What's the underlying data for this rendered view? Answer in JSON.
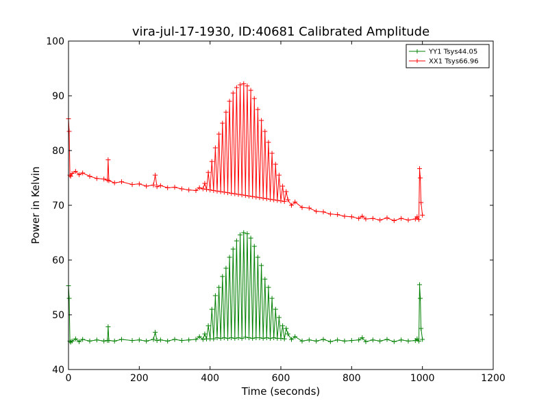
{
  "chart_data": {
    "type": "line",
    "title": "vira-jul-17-1930, ID:40681 Calibrated Amplitude",
    "xlabel": "Time (seconds)",
    "ylabel": "Power in Kelvin",
    "xlim": [
      0,
      1200
    ],
    "ylim": [
      40,
      100
    ],
    "x_ticks": [
      "0",
      "200",
      "400",
      "600",
      "800",
      "1000",
      "1200"
    ],
    "y_ticks": [
      "40",
      "50",
      "60",
      "70",
      "80",
      "90",
      "100"
    ],
    "grid": false,
    "legend_position": "top-right",
    "series": [
      {
        "name": "YY1 Tsys44.05",
        "color": "#008000",
        "marker": "+",
        "x": [
          0,
          2,
          4,
          6,
          10,
          20,
          30,
          40,
          60,
          80,
          100,
          110,
          112,
          114,
          130,
          150,
          180,
          200,
          220,
          240,
          245,
          250,
          260,
          280,
          300,
          320,
          340,
          360,
          370,
          380,
          385,
          390,
          395,
          400,
          405,
          410,
          415,
          420,
          425,
          430,
          435,
          440,
          445,
          450,
          455,
          460,
          465,
          470,
          475,
          480,
          485,
          490,
          495,
          500,
          505,
          510,
          515,
          520,
          525,
          530,
          535,
          540,
          545,
          550,
          555,
          560,
          565,
          570,
          575,
          580,
          585,
          590,
          595,
          600,
          605,
          610,
          615,
          620,
          630,
          640,
          660,
          680,
          700,
          720,
          740,
          760,
          780,
          800,
          820,
          830,
          840,
          860,
          880,
          900,
          920,
          940,
          960,
          980,
          985,
          990,
          992,
          994,
          996,
          1000
        ],
        "y": [
          55.3,
          53.0,
          45.2,
          45.0,
          45.2,
          45.6,
          45.1,
          45.5,
          45.2,
          45.4,
          45.2,
          45.3,
          47.8,
          45.3,
          45.2,
          45.5,
          45.3,
          45.4,
          45.2,
          45.5,
          46.8,
          45.3,
          45.4,
          45.2,
          45.5,
          45.3,
          45.4,
          45.5,
          46.0,
          45.5,
          46.5,
          45.6,
          48.0,
          45.6,
          51.0,
          45.6,
          53.5,
          45.8,
          55.0,
          45.7,
          57.0,
          45.8,
          58.5,
          45.7,
          60.5,
          45.8,
          62.0,
          45.7,
          63.5,
          45.8,
          64.6,
          45.7,
          65.0,
          45.9,
          64.8,
          45.8,
          64.0,
          45.7,
          62.5,
          45.8,
          60.5,
          45.8,
          59.0,
          45.7,
          56.5,
          45.8,
          55.0,
          45.7,
          53.0,
          45.8,
          51.0,
          45.7,
          49.5,
          45.7,
          48.0,
          45.6,
          47.5,
          46.5,
          45.5,
          46.0,
          45.2,
          45.4,
          45.2,
          45.5,
          45.1,
          45.4,
          45.2,
          45.3,
          45.4,
          45.8,
          45.1,
          45.4,
          45.2,
          45.5,
          45.1,
          45.4,
          45.2,
          45.3,
          45.6,
          45.2,
          55.5,
          53.0,
          47.5,
          45.5
        ]
      },
      {
        "name": "XX1 Tsys66.96",
        "color": "#ff0000",
        "marker": "+",
        "x": [
          0,
          2,
          4,
          6,
          10,
          20,
          30,
          40,
          60,
          80,
          100,
          110,
          112,
          114,
          130,
          150,
          180,
          200,
          220,
          240,
          245,
          250,
          260,
          280,
          300,
          320,
          340,
          360,
          370,
          380,
          385,
          390,
          395,
          400,
          405,
          410,
          415,
          420,
          425,
          430,
          435,
          440,
          445,
          450,
          455,
          460,
          465,
          470,
          475,
          480,
          485,
          490,
          495,
          500,
          505,
          510,
          515,
          520,
          525,
          530,
          535,
          540,
          545,
          550,
          555,
          560,
          565,
          570,
          575,
          580,
          585,
          590,
          595,
          600,
          605,
          610,
          615,
          620,
          630,
          640,
          660,
          680,
          700,
          720,
          740,
          760,
          780,
          800,
          820,
          830,
          840,
          860,
          880,
          900,
          920,
          940,
          960,
          980,
          985,
          990,
          992,
          994,
          996,
          1000
        ],
        "y": [
          85.8,
          83.5,
          75.5,
          75.3,
          75.8,
          76.2,
          75.6,
          75.9,
          75.3,
          74.9,
          74.8,
          74.6,
          78.3,
          74.5,
          74.1,
          74.3,
          73.8,
          73.9,
          73.5,
          73.7,
          75.5,
          73.4,
          73.6,
          73.2,
          73.3,
          73.0,
          72.8,
          72.7,
          73.2,
          73.0,
          74.0,
          72.9,
          76.0,
          72.8,
          78.0,
          72.7,
          80.5,
          72.6,
          83.0,
          72.5,
          85.0,
          72.4,
          87.0,
          72.3,
          89.0,
          72.2,
          90.5,
          72.1,
          91.5,
          72.0,
          92.0,
          71.9,
          92.2,
          71.8,
          91.8,
          71.7,
          91.0,
          71.6,
          89.5,
          71.5,
          87.5,
          71.4,
          85.5,
          71.3,
          83.5,
          71.2,
          81.5,
          71.1,
          79.5,
          71.0,
          77.5,
          70.9,
          75.5,
          70.8,
          73.5,
          70.7,
          72.5,
          71.0,
          70.0,
          70.6,
          69.6,
          69.5,
          68.9,
          68.8,
          68.4,
          68.3,
          68.0,
          67.9,
          67.6,
          68.0,
          67.5,
          67.6,
          67.3,
          67.7,
          67.2,
          67.6,
          67.3,
          67.5,
          67.9,
          67.4,
          76.7,
          75.0,
          70.5,
          68.2
        ]
      }
    ]
  }
}
